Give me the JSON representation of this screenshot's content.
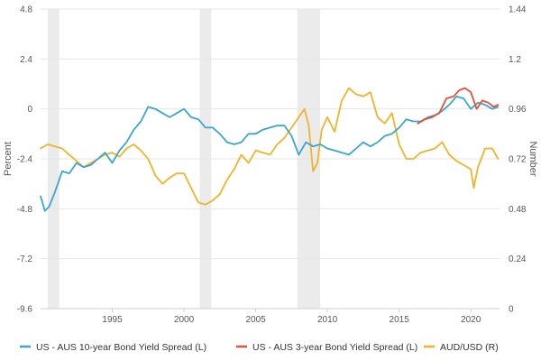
{
  "chart_data": {
    "type": "line",
    "title": "",
    "xlabel": "",
    "ylabel_left": "Percent",
    "ylabel_right": "Number",
    "xlim": [
      1990,
      2022
    ],
    "ylim_left": [
      -9.6,
      4.8
    ],
    "ylim_right": [
      0,
      1.44
    ],
    "x_ticks": [
      1995,
      2000,
      2005,
      2010,
      2015,
      2020
    ],
    "y_ticks_left": [
      4.8,
      2.4,
      0,
      -2.4,
      -4.8,
      -7.2,
      -9.6
    ],
    "y_tick_labels_left": [
      "4.8",
      "2.4",
      "0",
      "-2.4",
      "-4.8",
      "-7.2",
      "-9.6"
    ],
    "y_ticks_right": [
      1.44,
      1.2,
      0.96,
      0.72,
      0.48,
      0.24,
      0
    ],
    "y_tick_labels_right": [
      "1.44",
      "1.2",
      "0.96",
      "0.72",
      "0.48",
      "0.24",
      "0"
    ],
    "grid": "horizontal",
    "legend_position": "bottom",
    "recession_shading": [
      [
        1990.5,
        1991.3
      ],
      [
        2001.1,
        2001.9
      ],
      [
        2007.9,
        2009.5
      ]
    ],
    "colors": {
      "us_aus_10y": "#3aa6d0",
      "us_aus_3y": "#e4503a",
      "aud_usd": "#f0b429",
      "shading": "#ebebeb",
      "grid": "#e6e6e6"
    },
    "series": [
      {
        "name": "US - AUS 10-year Bond Yield Spread (L)",
        "axis": "left",
        "color": "#3aa6d0",
        "x": [
          1990.0,
          1990.3,
          1990.6,
          1991.0,
          1991.5,
          1992.0,
          1992.5,
          1993.0,
          1993.5,
          1994.0,
          1994.5,
          1995.0,
          1995.5,
          1996.0,
          1996.5,
          1997.0,
          1997.5,
          1998.0,
          1998.5,
          1999.0,
          1999.5,
          2000.0,
          2000.5,
          2001.0,
          2001.5,
          2002.0,
          2002.5,
          2003.0,
          2003.5,
          2004.0,
          2004.5,
          2005.0,
          2005.5,
          2006.0,
          2006.5,
          2007.0,
          2007.5,
          2008.0,
          2008.5,
          2009.0,
          2009.5,
          2010.0,
          2010.5,
          2011.0,
          2011.5,
          2012.0,
          2012.5,
          2013.0,
          2013.5,
          2014.0,
          2014.5,
          2015.0,
          2015.5,
          2016.0,
          2016.5,
          2017.0,
          2017.5,
          2018.0,
          2018.5,
          2019.0,
          2019.5,
          2020.0,
          2020.5,
          2021.0,
          2021.5,
          2021.9
        ],
        "values": [
          -4.2,
          -4.9,
          -4.7,
          -4.0,
          -3.0,
          -3.1,
          -2.6,
          -2.8,
          -2.7,
          -2.4,
          -2.1,
          -2.6,
          -2.0,
          -1.6,
          -1.0,
          -0.6,
          0.1,
          0.0,
          -0.2,
          -0.4,
          -0.2,
          0.0,
          -0.4,
          -0.5,
          -0.9,
          -0.9,
          -1.2,
          -1.6,
          -1.7,
          -1.6,
          -1.2,
          -1.2,
          -1.0,
          -0.9,
          -0.8,
          -0.8,
          -1.3,
          -2.2,
          -1.6,
          -1.8,
          -1.7,
          -1.9,
          -2.0,
          -2.1,
          -2.2,
          -1.9,
          -1.6,
          -1.8,
          -1.6,
          -1.3,
          -1.2,
          -0.9,
          -0.5,
          -0.6,
          -0.6,
          -0.4,
          -0.3,
          -0.1,
          0.2,
          0.6,
          0.5,
          0.0,
          0.3,
          0.2,
          0.0,
          0.1
        ]
      },
      {
        "name": "US - AUS 3-year Bond Yield Spread (L)",
        "axis": "left",
        "color": "#e4503a",
        "x": [
          2016.3,
          2016.8,
          2017.3,
          2017.8,
          2018.3,
          2018.8,
          2019.2,
          2019.6,
          2020.0,
          2020.4,
          2020.8,
          2021.2,
          2021.6,
          2021.9
        ],
        "values": [
          -0.7,
          -0.5,
          -0.4,
          -0.2,
          0.5,
          0.6,
          0.9,
          1.0,
          0.8,
          0.0,
          0.4,
          0.3,
          0.1,
          0.2
        ]
      },
      {
        "name": "AUD/USD (R)",
        "axis": "right",
        "color": "#f0b429",
        "x": [
          1990.0,
          1990.5,
          1991.0,
          1991.5,
          1992.0,
          1992.5,
          1993.0,
          1993.5,
          1994.0,
          1994.5,
          1995.0,
          1995.5,
          1996.0,
          1996.5,
          1997.0,
          1997.5,
          1998.0,
          1998.5,
          1999.0,
          1999.5,
          2000.0,
          2000.5,
          2001.0,
          2001.5,
          2002.0,
          2002.5,
          2003.0,
          2003.5,
          2004.0,
          2004.5,
          2005.0,
          2005.5,
          2006.0,
          2006.5,
          2007.0,
          2007.5,
          2008.0,
          2008.4,
          2008.7,
          2009.0,
          2009.3,
          2009.6,
          2010.0,
          2010.5,
          2011.0,
          2011.5,
          2012.0,
          2012.5,
          2013.0,
          2013.5,
          2014.0,
          2014.5,
          2015.0,
          2015.5,
          2016.0,
          2016.5,
          2017.0,
          2017.5,
          2018.0,
          2018.5,
          2019.0,
          2019.5,
          2020.0,
          2020.2,
          2020.5,
          2021.0,
          2021.5,
          2021.9
        ],
        "values": [
          0.77,
          0.79,
          0.78,
          0.77,
          0.74,
          0.71,
          0.68,
          0.7,
          0.72,
          0.74,
          0.75,
          0.73,
          0.77,
          0.79,
          0.76,
          0.72,
          0.64,
          0.6,
          0.63,
          0.65,
          0.65,
          0.58,
          0.51,
          0.5,
          0.52,
          0.55,
          0.62,
          0.67,
          0.74,
          0.7,
          0.76,
          0.75,
          0.74,
          0.79,
          0.82,
          0.87,
          0.92,
          0.96,
          0.88,
          0.66,
          0.7,
          0.86,
          0.92,
          0.85,
          1.0,
          1.06,
          1.03,
          1.02,
          1.04,
          0.92,
          0.89,
          0.94,
          0.79,
          0.72,
          0.72,
          0.75,
          0.76,
          0.77,
          0.8,
          0.74,
          0.71,
          0.69,
          0.67,
          0.58,
          0.68,
          0.77,
          0.77,
          0.72
        ]
      }
    ]
  }
}
